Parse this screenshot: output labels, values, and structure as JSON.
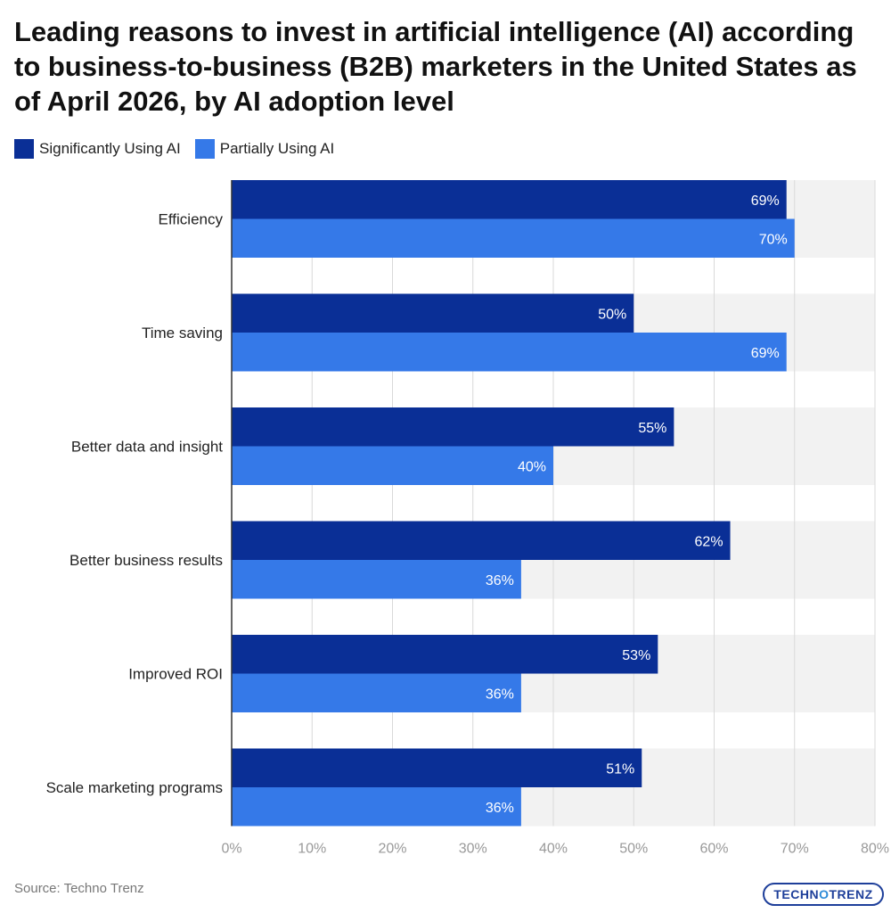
{
  "title": "Leading reasons to invest in artificial intelligence (AI) according to business-to-business (B2B) marketers in the United States as of April 2026, by AI adoption level",
  "source": "Source: Techno Trenz",
  "logo": {
    "part1": "TECHN",
    "part2": "O",
    "part3": "TRENZ"
  },
  "colors": {
    "series1": "#0a2f96",
    "series2": "#3579e8",
    "band": "#f2f2f2",
    "grid": "#d9d9d9"
  },
  "chart_data": {
    "type": "bar",
    "orientation": "horizontal",
    "categories": [
      "Efficiency",
      "Time saving",
      "Better data and insight",
      "Better business results",
      "Improved ROI",
      "Scale marketing programs"
    ],
    "series": [
      {
        "name": "Significantly Using AI",
        "values": [
          69,
          50,
          55,
          62,
          53,
          51
        ]
      },
      {
        "name": "Partially Using AI",
        "values": [
          70,
          69,
          40,
          36,
          36,
          36
        ]
      }
    ],
    "xlim": [
      0,
      80
    ],
    "xticks": [
      "0%",
      "10%",
      "20%",
      "30%",
      "40%",
      "50%",
      "60%",
      "70%",
      "80%"
    ],
    "value_suffix": "%",
    "grid": true,
    "legend_position": "top-left"
  }
}
